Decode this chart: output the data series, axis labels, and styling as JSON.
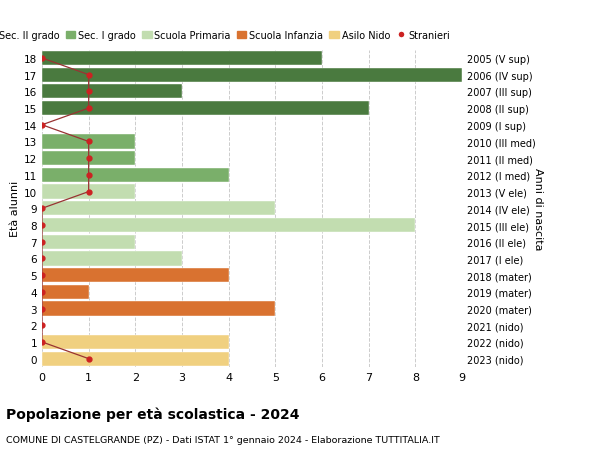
{
  "ages": [
    18,
    17,
    16,
    15,
    14,
    13,
    12,
    11,
    10,
    9,
    8,
    7,
    6,
    5,
    4,
    3,
    2,
    1,
    0
  ],
  "right_labels": [
    "2005 (V sup)",
    "2006 (IV sup)",
    "2007 (III sup)",
    "2008 (II sup)",
    "2009 (I sup)",
    "2010 (III med)",
    "2011 (II med)",
    "2012 (I med)",
    "2013 (V ele)",
    "2014 (IV ele)",
    "2015 (III ele)",
    "2016 (II ele)",
    "2017 (I ele)",
    "2018 (mater)",
    "2019 (mater)",
    "2020 (mater)",
    "2021 (nido)",
    "2022 (nido)",
    "2023 (nido)"
  ],
  "bar_values": [
    6,
    9,
    3,
    7,
    0,
    2,
    2,
    4,
    2,
    5,
    8,
    2,
    3,
    4,
    1,
    5,
    0,
    4,
    4
  ],
  "bar_colors": [
    "#4a7a3f",
    "#4a7a3f",
    "#4a7a3f",
    "#4a7a3f",
    "#4a7a3f",
    "#7aaf6a",
    "#7aaf6a",
    "#7aaf6a",
    "#c2ddb0",
    "#c2ddb0",
    "#c2ddb0",
    "#c2ddb0",
    "#c2ddb0",
    "#d97230",
    "#d97230",
    "#d97230",
    "#f0d080",
    "#f0d080",
    "#f0d080"
  ],
  "stranieri_x": [
    0,
    1,
    1,
    1,
    0,
    1,
    1,
    1,
    1,
    0,
    0,
    0,
    0,
    0,
    0,
    0,
    0,
    0,
    1
  ],
  "stranieri_color": "#cc2222",
  "stranieri_line_color": "#993333",
  "legend_labels": [
    "Sec. II grado",
    "Sec. I grado",
    "Scuola Primaria",
    "Scuola Infanzia",
    "Asilo Nido",
    "Stranieri"
  ],
  "legend_colors": [
    "#4a7a3f",
    "#7aaf6a",
    "#c2ddb0",
    "#d97230",
    "#f0d080",
    "#cc2222"
  ],
  "title": "Popolazione per età scolastica - 2024",
  "subtitle": "COMUNE DI CASTELGRANDE (PZ) - Dati ISTAT 1° gennaio 2024 - Elaborazione TUTTITALIA.IT",
  "ylabel": "Età alunni",
  "ylabel2": "Anni di nascita",
  "xlim": [
    0,
    9
  ],
  "background_color": "#ffffff",
  "grid_color": "#cccccc"
}
